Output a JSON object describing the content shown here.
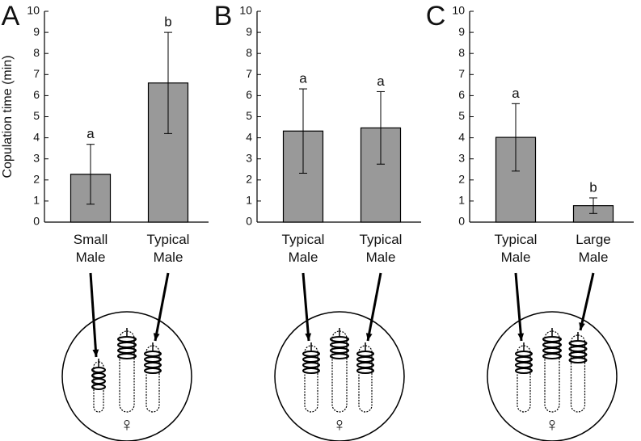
{
  "chart_data": [
    {
      "type": "bar",
      "panel": "A",
      "y_label": "Copulation time (min)",
      "categories": [
        "Small Male",
        "Typical Male"
      ],
      "values": [
        2.27,
        6.6
      ],
      "errors": [
        1.42,
        2.4
      ],
      "labels": [
        "a",
        "b"
      ],
      "color": "#999999",
      "ylim": [
        0,
        10
      ],
      "yticks": [
        0,
        1,
        2,
        3,
        4,
        5,
        6,
        7,
        8,
        9,
        10
      ],
      "illustration_label": "♀"
    },
    {
      "type": "bar",
      "panel": "B",
      "categories": [
        "Typical Male",
        "Typical Male"
      ],
      "values": [
        4.32,
        4.47
      ],
      "errors": [
        2.0,
        1.72
      ],
      "labels": [
        "a",
        "a"
      ],
      "color": "#999999",
      "ylim": [
        0,
        10
      ],
      "yticks": [
        0,
        1,
        2,
        3,
        4,
        5,
        6,
        7,
        8,
        9,
        10
      ],
      "illustration_label": "♀"
    },
    {
      "type": "bar",
      "panel": "C",
      "categories": [
        "Typical Male",
        "Large Male"
      ],
      "values": [
        4.02,
        0.78
      ],
      "errors": [
        1.6,
        0.37
      ],
      "labels": [
        "a",
        "b"
      ],
      "color": "#999999",
      "ylim": [
        0,
        10
      ],
      "yticks": [
        0,
        1,
        2,
        3,
        4,
        5,
        6,
        7,
        8,
        9,
        10
      ],
      "illustration_label": "♀"
    }
  ]
}
